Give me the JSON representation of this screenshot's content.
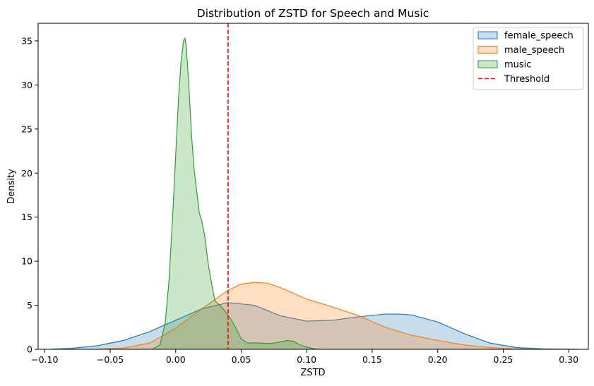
{
  "chart_data": {
    "type": "area",
    "title": "Distribution of ZSTD for Speech and Music",
    "xlabel": "ZSTD",
    "ylabel": "Density",
    "xlim": [
      -0.105,
      0.315
    ],
    "ylim": [
      0,
      37
    ],
    "xticks": [
      -0.1,
      -0.05,
      0.0,
      0.05,
      0.1,
      0.15,
      0.2,
      0.25,
      0.3
    ],
    "xtick_labels": [
      "−0.10",
      "−0.05",
      "0.00",
      "0.05",
      "0.10",
      "0.15",
      "0.20",
      "0.25",
      "0.30"
    ],
    "yticks": [
      0,
      5,
      10,
      15,
      20,
      25,
      30,
      35
    ],
    "ytick_labels": [
      "0",
      "5",
      "10",
      "15",
      "20",
      "25",
      "30",
      "35"
    ],
    "grid": false,
    "legend_position": "top-right",
    "series": [
      {
        "name": "female_speech",
        "color": "#1f77b4",
        "x": [
          -0.095,
          -0.08,
          -0.06,
          -0.04,
          -0.02,
          0.0,
          0.02,
          0.04,
          0.06,
          0.08,
          0.1,
          0.12,
          0.14,
          0.16,
          0.17,
          0.18,
          0.2,
          0.22,
          0.24,
          0.26,
          0.28,
          0.3,
          0.307
        ],
        "y": [
          0.02,
          0.1,
          0.4,
          1.0,
          2.0,
          3.3,
          4.6,
          5.3,
          5.0,
          3.8,
          3.2,
          3.3,
          3.7,
          4.0,
          4.0,
          3.9,
          3.1,
          1.8,
          0.7,
          0.2,
          0.05,
          0.01,
          0.0
        ]
      },
      {
        "name": "male_speech",
        "color": "#ff7f0e",
        "x": [
          -0.06,
          -0.04,
          -0.02,
          0.0,
          0.02,
          0.04,
          0.05,
          0.06,
          0.07,
          0.08,
          0.1,
          0.12,
          0.14,
          0.16,
          0.18,
          0.2,
          0.22,
          0.24,
          0.26,
          0.28
        ],
        "y": [
          0.02,
          0.15,
          0.7,
          2.4,
          4.6,
          6.7,
          7.4,
          7.6,
          7.5,
          7.0,
          5.7,
          4.8,
          3.8,
          2.5,
          1.6,
          1.0,
          0.5,
          0.2,
          0.05,
          0.0
        ]
      },
      {
        "name": "music",
        "color": "#2ca02c",
        "x": [
          -0.018,
          -0.012,
          -0.008,
          -0.005,
          -0.002,
          0.0,
          0.002,
          0.004,
          0.006,
          0.007,
          0.008,
          0.01,
          0.012,
          0.014,
          0.016,
          0.018,
          0.02,
          0.022,
          0.025,
          0.028,
          0.03,
          0.035,
          0.04,
          0.045,
          0.05,
          0.055,
          0.06,
          0.065,
          0.07,
          0.075,
          0.08,
          0.085,
          0.09,
          0.095,
          0.1,
          0.105,
          0.11
        ],
        "y": [
          0.0,
          0.5,
          3.0,
          8.0,
          16.0,
          22.0,
          28.0,
          32.5,
          35.0,
          35.3,
          34.5,
          30.0,
          24.5,
          20.5,
          18.0,
          15.5,
          14.5,
          13.0,
          9.5,
          7.0,
          5.5,
          4.8,
          3.9,
          2.7,
          1.2,
          0.7,
          0.75,
          0.7,
          0.65,
          0.7,
          0.85,
          1.0,
          0.9,
          0.5,
          0.25,
          0.08,
          0.0
        ]
      }
    ],
    "threshold": {
      "name": "Threshold",
      "x": 0.04,
      "color": "#ff0000",
      "style": "dashed"
    }
  }
}
